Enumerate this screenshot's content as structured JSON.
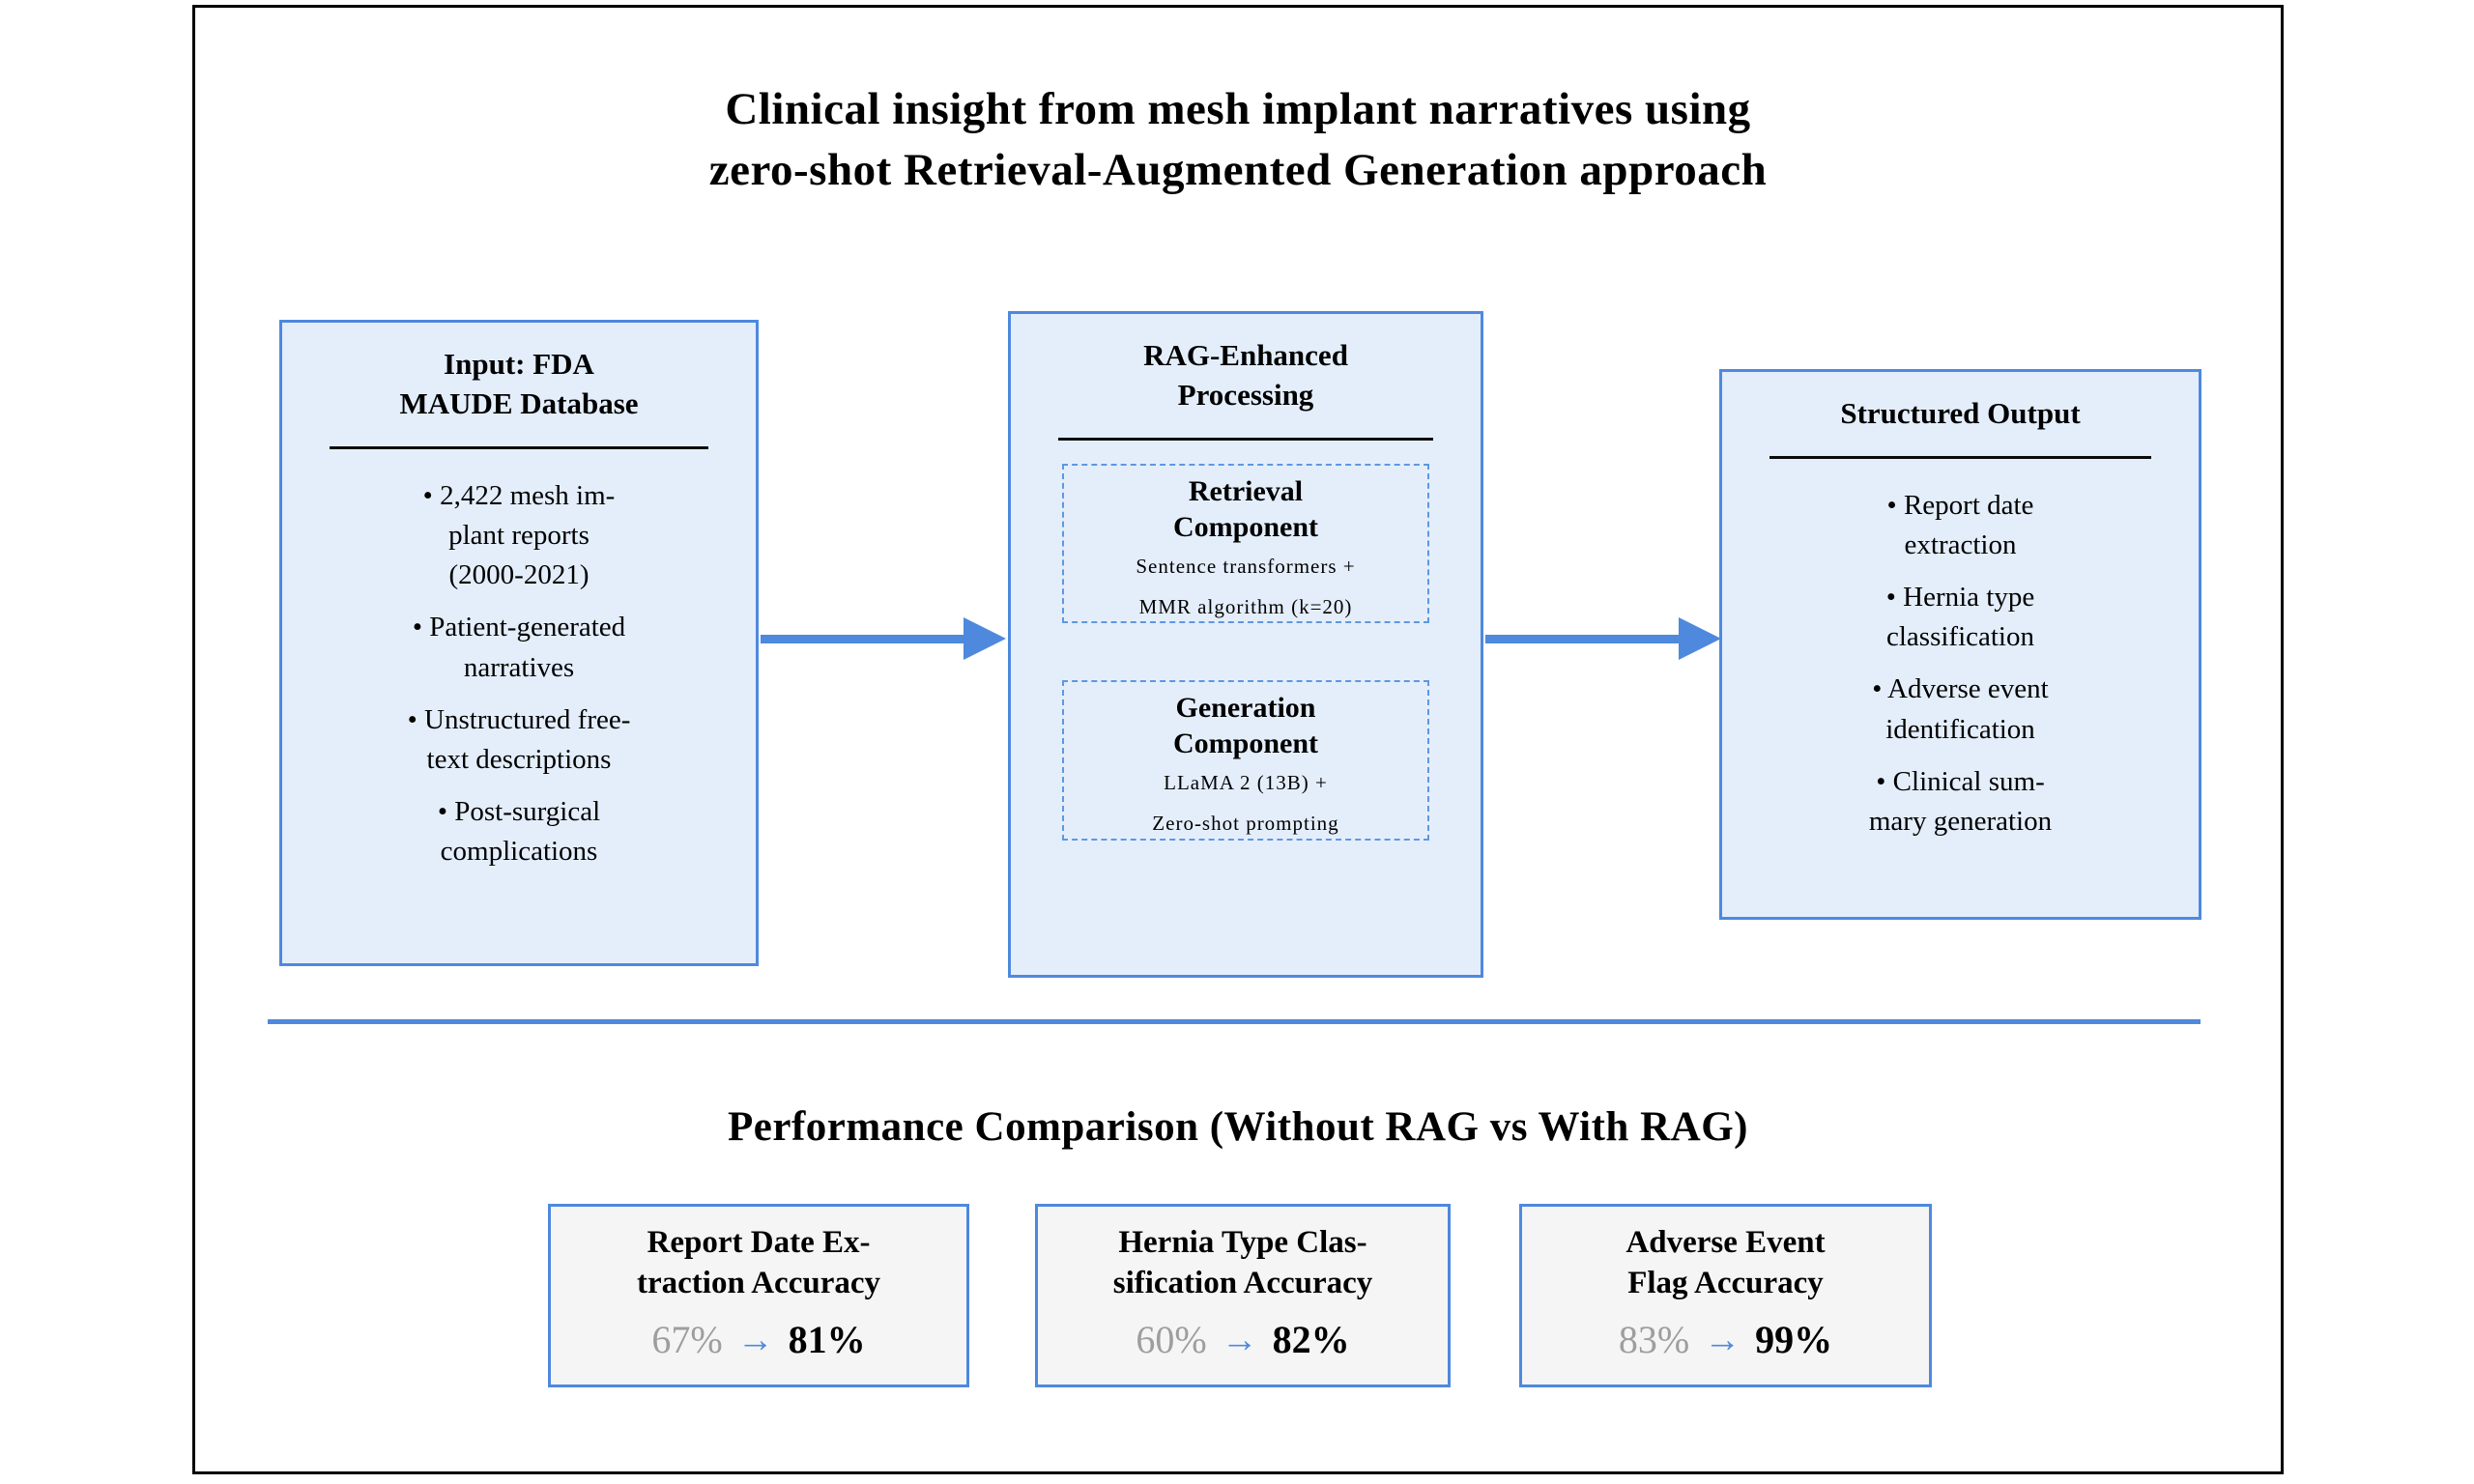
{
  "title": {
    "text": "Clinical insight from mesh implant narratives using\nzero-shot Retrieval-Augmented Generation approach"
  },
  "flow": {
    "input": {
      "title": "Input: FDA\nMAUDE Database",
      "bullets": [
        "• 2,422 mesh im-\nplant reports\n(2000-2021)",
        "• Patient-generated\nnarratives",
        "• Unstructured free-\ntext descriptions",
        "• Post-surgical\ncomplications"
      ]
    },
    "processing": {
      "title": "RAG-Enhanced\nProcessing",
      "retrieval": {
        "title": "Retrieval\nComponent",
        "line1": "Sentence transformers +",
        "line2": "MMR algorithm (k=20)"
      },
      "generation": {
        "title": "Generation\nComponent",
        "line1": "LLaMA 2 (13B) +",
        "line2": "Zero-shot prompting"
      }
    },
    "output": {
      "title": "Structured Output",
      "bullets": [
        "• Report date\nextraction",
        "• Hernia type\nclassification",
        "• Adverse event\nidentification",
        "• Clinical sum-\nmary generation"
      ]
    }
  },
  "performance": {
    "title": "Performance Comparison (Without RAG vs With RAG)",
    "metrics": [
      {
        "title": "Report Date Ex-\ntraction Accuracy",
        "from": "67%",
        "arrow": "→",
        "to": "81%"
      },
      {
        "title": "Hernia Type Clas-\nsification Accuracy",
        "from": "60%",
        "arrow": "→",
        "to": "82%"
      },
      {
        "title": "Adverse Event\nFlag Accuracy",
        "from": "83%",
        "arrow": "→",
        "to": "99%"
      }
    ]
  },
  "colors": {
    "box-fill": "#e4eefb",
    "box-border": "#4e89dd",
    "dash-border": "#5e97e2",
    "metric-fill": "#f5f5f6",
    "gray-text": "#9e9e9e"
  }
}
